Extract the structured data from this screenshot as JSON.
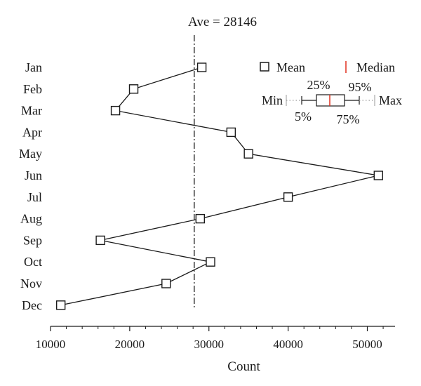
{
  "chart_data": {
    "type": "line",
    "title": "Ave = 28146",
    "xlabel": "Count",
    "ylabel": "",
    "xlim": [
      10000,
      53500
    ],
    "xticks": [
      "10000",
      "20000",
      "30000",
      "40000",
      "50000"
    ],
    "xtick_values": [
      10000,
      20000,
      30000,
      40000,
      50000
    ],
    "categories": [
      "Jan",
      "Feb",
      "Mar",
      "Apr",
      "May",
      "Jun",
      "Jul",
      "Aug",
      "Sep",
      "Oct",
      "Nov",
      "Dec"
    ],
    "series": [
      {
        "values": [
          29100,
          20500,
          18200,
          32800,
          35000,
          51400,
          40000,
          28900,
          16300,
          30200,
          24600,
          11300
        ]
      }
    ],
    "reference_line": {
      "value": 28146,
      "style": "dash-dot"
    },
    "grid": false,
    "legend": {
      "placement": "top-right",
      "mean_label": "Mean",
      "median_label": "Median",
      "min_label": "Min",
      "max_label": "Max",
      "p5_label": "5%",
      "p25_label": "25%",
      "p75_label": "75%",
      "p95_label": "95%",
      "median_color": "#e0311f"
    },
    "colors": {
      "line": "#1a1a1a",
      "marker_fill": "#ffffff"
    }
  }
}
